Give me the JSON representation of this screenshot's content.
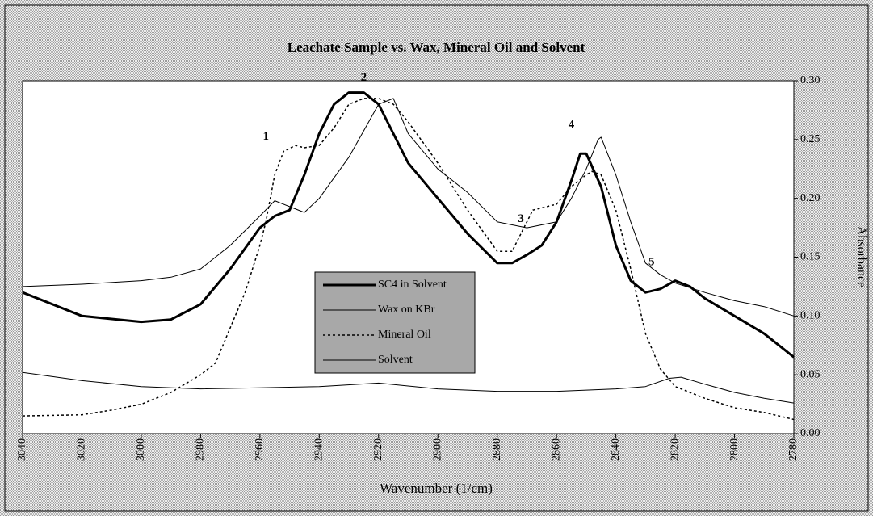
{
  "chart_data": {
    "type": "line",
    "title": "Leachate Sample vs. Wax, Mineral Oil and Solvent",
    "x_label": "Wavenumber (1/cm)",
    "y_label": "Absorbance",
    "xlim": [
      3040,
      2780
    ],
    "ylim": [
      0,
      0.3
    ],
    "xticks": [
      3040,
      3020,
      3000,
      2980,
      2960,
      2940,
      2920,
      2900,
      2880,
      2860,
      2840,
      2820,
      2800,
      2780
    ],
    "yticks": [
      {
        "value": 0,
        "label": "0.00"
      },
      {
        "value": 0.05,
        "label": "0.05"
      },
      {
        "value": 0.1,
        "label": "0.10"
      },
      {
        "value": 0.15,
        "label": "0.15"
      },
      {
        "value": 0.2,
        "label": "0.20"
      },
      {
        "value": 0.25,
        "label": "0.25"
      },
      {
        "value": 0.3,
        "label": "0.30"
      }
    ],
    "grid": false,
    "series": [
      {
        "name": "SC4 in Solvent",
        "color": "#000000",
        "line_width": 3,
        "line_style": "solid",
        "x": [
          3040,
          3020,
          3000,
          2990,
          2980,
          2970,
          2960,
          2955,
          2950,
          2945,
          2940,
          2935,
          2930,
          2925,
          2920,
          2915,
          2910,
          2900,
          2890,
          2880,
          2875,
          2870,
          2865,
          2860,
          2855,
          2852,
          2850,
          2845,
          2840,
          2835,
          2830,
          2825,
          2820,
          2815,
          2810,
          2800,
          2790,
          2780
        ],
        "values": [
          0.12,
          0.1,
          0.095,
          0.097,
          0.11,
          0.14,
          0.175,
          0.185,
          0.19,
          0.22,
          0.255,
          0.28,
          0.29,
          0.29,
          0.28,
          0.255,
          0.23,
          0.2,
          0.17,
          0.145,
          0.145,
          0.152,
          0.16,
          0.18,
          0.215,
          0.238,
          0.238,
          0.21,
          0.16,
          0.13,
          0.12,
          0.123,
          0.13,
          0.125,
          0.115,
          0.1,
          0.085,
          0.065
        ]
      },
      {
        "name": "Wax on KBr",
        "color": "#000000",
        "line_width": 1,
        "line_style": "solid",
        "x": [
          3040,
          3020,
          3000,
          2990,
          2980,
          2970,
          2960,
          2955,
          2950,
          2945,
          2940,
          2930,
          2920,
          2915,
          2910,
          2900,
          2890,
          2880,
          2870,
          2860,
          2855,
          2850,
          2846,
          2845,
          2840,
          2835,
          2830,
          2825,
          2820,
          2810,
          2800,
          2790,
          2780
        ],
        "values": [
          0.125,
          0.127,
          0.13,
          0.133,
          0.14,
          0.16,
          0.185,
          0.198,
          0.193,
          0.188,
          0.2,
          0.235,
          0.28,
          0.285,
          0.255,
          0.225,
          0.205,
          0.18,
          0.175,
          0.18,
          0.2,
          0.225,
          0.25,
          0.252,
          0.22,
          0.18,
          0.145,
          0.135,
          0.128,
          0.12,
          0.113,
          0.108,
          0.1
        ]
      },
      {
        "name": "Mineral Oil",
        "color": "#000000",
        "line_width": 1.5,
        "line_style": "dotted",
        "x": [
          3040,
          3020,
          3010,
          3000,
          2990,
          2980,
          2975,
          2970,
          2965,
          2960,
          2958,
          2955,
          2952,
          2948,
          2945,
          2940,
          2935,
          2930,
          2925,
          2920,
          2915,
          2910,
          2900,
          2890,
          2880,
          2875,
          2870,
          2868,
          2860,
          2855,
          2850,
          2848,
          2845,
          2840,
          2835,
          2830,
          2825,
          2820,
          2810,
          2800,
          2790,
          2780
        ],
        "values": [
          0.015,
          0.016,
          0.02,
          0.025,
          0.035,
          0.05,
          0.06,
          0.09,
          0.12,
          0.16,
          0.18,
          0.22,
          0.24,
          0.245,
          0.243,
          0.245,
          0.26,
          0.28,
          0.285,
          0.285,
          0.28,
          0.265,
          0.23,
          0.19,
          0.155,
          0.155,
          0.18,
          0.19,
          0.195,
          0.21,
          0.22,
          0.223,
          0.22,
          0.19,
          0.14,
          0.085,
          0.055,
          0.04,
          0.03,
          0.022,
          0.018,
          0.012
        ]
      },
      {
        "name": "Solvent",
        "color": "#000000",
        "line_width": 1,
        "line_style": "solid",
        "x": [
          3040,
          3020,
          3000,
          2980,
          2960,
          2940,
          2920,
          2900,
          2880,
          2860,
          2840,
          2830,
          2822,
          2818,
          2810,
          2800,
          2790,
          2780
        ],
        "values": [
          0.052,
          0.045,
          0.04,
          0.038,
          0.039,
          0.04,
          0.043,
          0.038,
          0.036,
          0.036,
          0.038,
          0.04,
          0.047,
          0.048,
          0.042,
          0.035,
          0.03,
          0.026
        ]
      }
    ],
    "annotations": [
      {
        "text": "1",
        "x": 2958,
        "y": 0.25
      },
      {
        "text": "2",
        "x": 2925,
        "y": 0.3
      },
      {
        "text": "3",
        "x": 2872,
        "y": 0.18
      },
      {
        "text": "4",
        "x": 2855,
        "y": 0.26
      },
      {
        "text": "5",
        "x": 2828,
        "y": 0.143
      }
    ]
  }
}
